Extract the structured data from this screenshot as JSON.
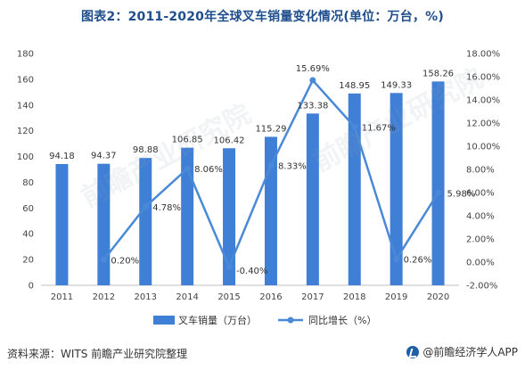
{
  "title": "图表2：2011-2020年全球叉车销量变化情况(单位：万台，%)",
  "source": "资料来源：WITS 前瞻产业研究院整理",
  "logo_text": "@前瞻经济学人APP",
  "watermark_text": "前瞻产业研究院",
  "colors": {
    "bar": "#3f7fd6",
    "line": "#4a89d8",
    "title": "#1f4e8c"
  },
  "chart_data": {
    "type": "bar+line",
    "categories": [
      "2011",
      "2012",
      "2013",
      "2014",
      "2015",
      "2016",
      "2017",
      "2018",
      "2019",
      "2020"
    ],
    "series": [
      {
        "name": "叉车销量（万台）",
        "type": "bar",
        "axis": "left",
        "values": [
          94.18,
          94.37,
          98.88,
          106.85,
          106.42,
          115.29,
          133.38,
          148.95,
          149.33,
          158.26
        ],
        "labels": [
          "94.18",
          "94.37",
          "98.88",
          "106.85",
          "106.42",
          "115.29",
          "133.38",
          "148.95",
          "149.33",
          "158.26"
        ]
      },
      {
        "name": "同比增长（%）",
        "type": "line",
        "axis": "right",
        "values": [
          null,
          0.2,
          4.78,
          8.06,
          -0.4,
          8.33,
          15.69,
          11.67,
          0.26,
          5.98
        ],
        "labels": [
          "",
          "0.20%",
          "4.78%",
          "8.06%",
          "-0.40%",
          "8.33%",
          "15.69%",
          "11.67%",
          "0.26%",
          "5.98%"
        ]
      }
    ],
    "left_axis": {
      "min": 0,
      "max": 180,
      "step": 20,
      "ticks": [
        "0",
        "20",
        "40",
        "60",
        "80",
        "100",
        "120",
        "140",
        "160",
        "180"
      ]
    },
    "right_axis": {
      "min": -2,
      "max": 18,
      "step": 2,
      "ticks": [
        "-2.00%",
        "0.00%",
        "2.00%",
        "4.00%",
        "6.00%",
        "8.00%",
        "10.00%",
        "12.00%",
        "14.00%",
        "16.00%",
        "18.00%"
      ]
    },
    "grid": false,
    "legend_position": "bottom"
  }
}
